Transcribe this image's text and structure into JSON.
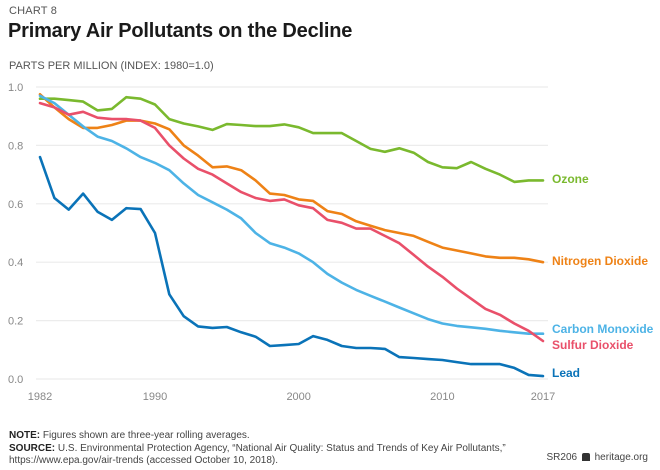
{
  "header": {
    "chart_label": "CHART 8",
    "title": "Primary Air Pollutants on the Decline",
    "units": "PARTS PER MILLION (INDEX: 1980=1.0)"
  },
  "footer": {
    "note_label": "NOTE:",
    "note_text": " Figures shown are three-year rolling averages.",
    "source_label": "SOURCE:",
    "source_text": " U.S. Environmental Protection Agency, “National Air Quality: Status and Trends of Key Air Pollutants,” https://www.epa.gov/air-trends (accessed October 10, 2018).",
    "report_id": "SR206",
    "site": "heritage.org"
  },
  "chart_data": {
    "type": "line",
    "title": "Primary Air Pollutants on the Decline",
    "ylabel": "PARTS PER MILLION (INDEX: 1980=1.0)",
    "xlabel": "",
    "xlim": [
      1982,
      2017
    ],
    "ylim": [
      0,
      1.0
    ],
    "grid": true,
    "xticks": [
      "1982",
      "1990",
      "2000",
      "2010",
      "2017"
    ],
    "yticks": [
      "0.0",
      "0.2",
      "0.4",
      "0.6",
      "0.8",
      "1.0"
    ],
    "legend": "right-end labels",
    "x": [
      1982,
      1983,
      1984,
      1985,
      1986,
      1987,
      1988,
      1989,
      1990,
      1991,
      1992,
      1993,
      1994,
      1995,
      1996,
      1997,
      1998,
      1999,
      2000,
      2001,
      2002,
      2003,
      2004,
      2005,
      2006,
      2007,
      2008,
      2009,
      2010,
      2011,
      2012,
      2013,
      2014,
      2015,
      2016,
      2017
    ],
    "series": [
      {
        "name": "Ozone",
        "color": "#7ab92e",
        "values": [
          0.96,
          0.96,
          0.955,
          0.95,
          0.92,
          0.925,
          0.965,
          0.96,
          0.94,
          0.89,
          0.875,
          0.865,
          0.853,
          0.873,
          0.87,
          0.866,
          0.866,
          0.872,
          0.862,
          0.842,
          0.842,
          0.842,
          0.815,
          0.788,
          0.778,
          0.79,
          0.775,
          0.743,
          0.725,
          0.722,
          0.743,
          0.72,
          0.7,
          0.675,
          0.68,
          0.68
        ]
      },
      {
        "name": "Nitrogen Dioxide",
        "color": "#ee8216",
        "values": [
          0.975,
          0.93,
          0.89,
          0.86,
          0.86,
          0.87,
          0.885,
          0.885,
          0.875,
          0.855,
          0.8,
          0.765,
          0.725,
          0.728,
          0.715,
          0.68,
          0.635,
          0.63,
          0.615,
          0.61,
          0.575,
          0.565,
          0.54,
          0.525,
          0.51,
          0.5,
          0.49,
          0.47,
          0.45,
          0.44,
          0.43,
          0.42,
          0.415,
          0.415,
          0.41,
          0.4
        ]
      },
      {
        "name": "Carbon Monoxide",
        "color": "#4db3e6",
        "values": [
          0.97,
          0.945,
          0.905,
          0.865,
          0.83,
          0.815,
          0.79,
          0.76,
          0.74,
          0.715,
          0.67,
          0.63,
          0.605,
          0.58,
          0.55,
          0.5,
          0.465,
          0.45,
          0.43,
          0.4,
          0.36,
          0.33,
          0.305,
          0.285,
          0.265,
          0.245,
          0.225,
          0.205,
          0.19,
          0.182,
          0.177,
          0.172,
          0.165,
          0.16,
          0.155,
          0.155
        ]
      },
      {
        "name": "Sulfur Dioxide",
        "color": "#e9506a",
        "values": [
          0.945,
          0.93,
          0.905,
          0.915,
          0.895,
          0.89,
          0.89,
          0.885,
          0.86,
          0.8,
          0.755,
          0.72,
          0.7,
          0.67,
          0.64,
          0.62,
          0.61,
          0.615,
          0.595,
          0.585,
          0.545,
          0.535,
          0.515,
          0.515,
          0.49,
          0.465,
          0.425,
          0.385,
          0.35,
          0.31,
          0.275,
          0.24,
          0.22,
          0.19,
          0.165,
          0.13
        ]
      },
      {
        "name": "Lead",
        "color": "#0a73b8",
        "values": [
          0.76,
          0.62,
          0.58,
          0.635,
          0.573,
          0.545,
          0.585,
          0.582,
          0.5,
          0.29,
          0.215,
          0.18,
          0.175,
          0.178,
          0.16,
          0.145,
          0.113,
          0.116,
          0.12,
          0.147,
          0.134,
          0.113,
          0.106,
          0.106,
          0.103,
          0.075,
          0.072,
          0.068,
          0.065,
          0.058,
          0.051,
          0.051,
          0.051,
          0.038,
          0.014,
          0.01
        ]
      }
    ]
  }
}
